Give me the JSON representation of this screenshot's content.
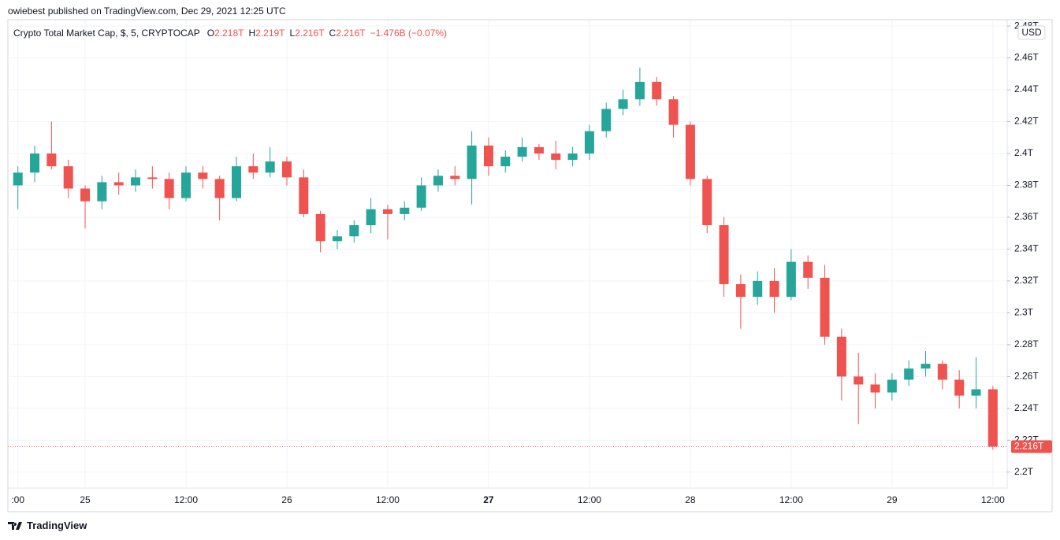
{
  "header": {
    "published": "owiebest published on TradingView.com, Dec 29, 2021 12:25 UTC"
  },
  "legend": {
    "symbol": "Crypto Total Market Cap, $, 5, CRYPTOCAP",
    "o_label": "O",
    "o_value": "2.218T",
    "h_label": "H",
    "h_value": "2.219T",
    "l_label": "L",
    "l_value": "2.216T",
    "c_label": "C",
    "c_value": "2.216T",
    "change": "−1.476B (−0.07%)"
  },
  "currency": "USD",
  "footer": {
    "brand": "TradingView"
  },
  "chart_data": {
    "type": "candlestick",
    "up_color": "#26a69a",
    "down_color": "#ef5350",
    "grid": true,
    "ylim": [
      2.19,
      2.484
    ],
    "yticks": [
      {
        "value": 2.2,
        "label": "2.2T"
      },
      {
        "value": 2.22,
        "label": "2.22T"
      },
      {
        "value": 2.24,
        "label": "2.24T"
      },
      {
        "value": 2.26,
        "label": "2.26T"
      },
      {
        "value": 2.28,
        "label": "2.28T"
      },
      {
        "value": 2.3,
        "label": "2.3T"
      },
      {
        "value": 2.32,
        "label": "2.32T"
      },
      {
        "value": 2.34,
        "label": "2.34T"
      },
      {
        "value": 2.36,
        "label": "2.36T"
      },
      {
        "value": 2.38,
        "label": "2.38T"
      },
      {
        "value": 2.4,
        "label": "2.4T"
      },
      {
        "value": 2.42,
        "label": "2.42T"
      },
      {
        "value": 2.44,
        "label": "2.44T"
      },
      {
        "value": 2.46,
        "label": "2.46T"
      },
      {
        "value": 2.48,
        "label": "2.48T"
      }
    ],
    "last_price": {
      "value": 2.216,
      "label": "2.216T"
    },
    "categories": [
      ":00",
      null,
      null,
      null,
      "25",
      null,
      null,
      null,
      null,
      null,
      "12:00",
      null,
      null,
      null,
      null,
      null,
      "26",
      null,
      null,
      null,
      null,
      null,
      "12:00",
      null,
      null,
      null,
      null,
      null,
      "27",
      null,
      null,
      null,
      null,
      null,
      "12:00",
      null,
      null,
      null,
      null,
      null,
      "28",
      null,
      null,
      null,
      null,
      null,
      "12:00",
      null,
      null,
      null,
      null,
      null,
      "29",
      null,
      null,
      null,
      null,
      null,
      "12:00"
    ],
    "open": [
      2.38,
      2.388,
      2.4,
      2.392,
      2.378,
      2.37,
      2.382,
      2.38,
      2.385,
      2.384,
      2.372,
      2.388,
      2.384,
      2.372,
      2.392,
      2.388,
      2.395,
      2.385,
      2.362,
      2.345,
      2.348,
      2.355,
      2.365,
      2.362,
      2.366,
      2.38,
      2.386,
      2.384,
      2.405,
      2.392,
      2.398,
      2.404,
      2.4,
      2.396,
      2.4,
      2.414,
      2.428,
      2.434,
      2.445,
      2.434,
      2.418,
      2.384,
      2.355,
      2.318,
      2.31,
      2.32,
      2.31,
      2.332,
      2.322,
      2.285,
      2.26,
      2.255,
      2.25,
      2.258,
      2.265,
      2.268,
      2.258,
      2.248,
      2.252
    ],
    "high": [
      2.392,
      2.405,
      2.42,
      2.396,
      2.38,
      2.386,
      2.388,
      2.39,
      2.392,
      2.388,
      2.392,
      2.392,
      2.386,
      2.398,
      2.4,
      2.404,
      2.398,
      2.39,
      2.364,
      2.352,
      2.358,
      2.372,
      2.368,
      2.37,
      2.385,
      2.39,
      2.392,
      2.414,
      2.41,
      2.402,
      2.41,
      2.406,
      2.408,
      2.404,
      2.418,
      2.432,
      2.44,
      2.454,
      2.448,
      2.436,
      2.42,
      2.386,
      2.36,
      2.324,
      2.326,
      2.328,
      2.34,
      2.336,
      2.33,
      2.29,
      2.275,
      2.262,
      2.262,
      2.27,
      2.276,
      2.27,
      2.264,
      2.272,
      2.254
    ],
    "low": [
      2.365,
      2.382,
      2.39,
      2.372,
      2.353,
      2.365,
      2.374,
      2.376,
      2.378,
      2.365,
      2.37,
      2.378,
      2.358,
      2.37,
      2.384,
      2.385,
      2.38,
      2.36,
      2.338,
      2.34,
      2.344,
      2.35,
      2.346,
      2.358,
      2.364,
      2.376,
      2.38,
      2.368,
      2.386,
      2.388,
      2.395,
      2.396,
      2.39,
      2.392,
      2.396,
      2.41,
      2.424,
      2.43,
      2.43,
      2.41,
      2.38,
      2.35,
      2.31,
      2.29,
      2.305,
      2.3,
      2.308,
      2.315,
      2.28,
      2.245,
      2.23,
      2.24,
      2.245,
      2.254,
      2.26,
      2.252,
      2.24,
      2.24,
      2.214
    ],
    "close": [
      2.388,
      2.4,
      2.392,
      2.378,
      2.37,
      2.382,
      2.38,
      2.385,
      2.384,
      2.372,
      2.388,
      2.384,
      2.372,
      2.392,
      2.388,
      2.395,
      2.385,
      2.362,
      2.345,
      2.348,
      2.355,
      2.365,
      2.362,
      2.366,
      2.38,
      2.386,
      2.384,
      2.405,
      2.392,
      2.398,
      2.404,
      2.4,
      2.396,
      2.4,
      2.414,
      2.428,
      2.434,
      2.445,
      2.434,
      2.418,
      2.384,
      2.355,
      2.318,
      2.31,
      2.32,
      2.31,
      2.332,
      2.322,
      2.285,
      2.26,
      2.255,
      2.25,
      2.258,
      2.265,
      2.268,
      2.258,
      2.248,
      2.252,
      2.216
    ]
  }
}
